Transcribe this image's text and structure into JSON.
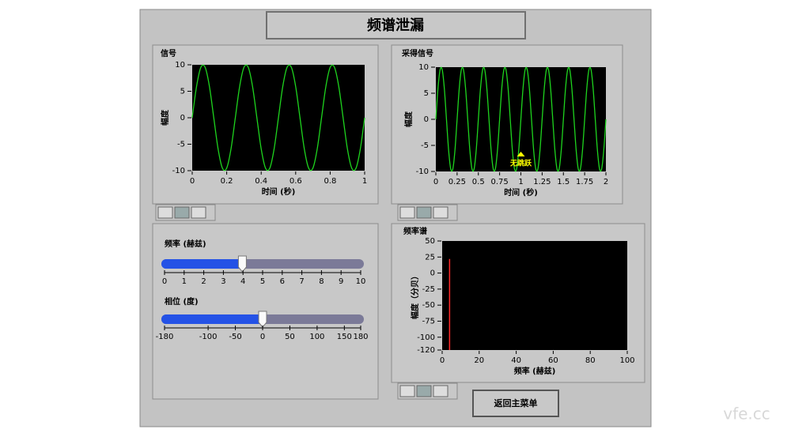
{
  "title": "频谱泄漏",
  "signal_chart": {
    "type": "line",
    "title": "信号",
    "x_label": "时间 (秒)",
    "y_label": "幅度",
    "xlim": [
      0,
      1
    ],
    "xticks": [
      0,
      0.2,
      0.4,
      0.6,
      0.8,
      1
    ],
    "ylim": [
      -10,
      10
    ],
    "yticks": [
      10,
      5,
      0,
      -5,
      -10
    ],
    "series": [
      {
        "color": "#1ed41e",
        "x": [
          0,
          0.025,
          0.05,
          0.075,
          0.1,
          0.125,
          0.15,
          0.175,
          0.2,
          0.225,
          0.25,
          0.275,
          0.3,
          0.325,
          0.35,
          0.375,
          0.4,
          0.425,
          0.45,
          0.475,
          0.5,
          0.525,
          0.55,
          0.575,
          0.6,
          0.625,
          0.65,
          0.675,
          0.7,
          0.725,
          0.75,
          0.775,
          0.8,
          0.825,
          0.85,
          0.875,
          0.9,
          0.925,
          0.95,
          0.975,
          1
        ],
        "values": [
          0,
          5.88,
          9.51,
          9.51,
          5.88,
          0,
          -5.88,
          -9.51,
          -9.51,
          -5.88,
          0,
          5.88,
          9.51,
          9.51,
          5.88,
          0,
          -5.88,
          -9.51,
          -9.51,
          -5.88,
          0,
          5.88,
          9.51,
          9.51,
          5.88,
          0,
          -5.88,
          -9.51,
          -9.51,
          -5.88,
          0,
          5.88,
          9.51,
          9.51,
          5.88,
          0,
          -5.88,
          -9.51,
          -9.51,
          -5.88,
          0
        ]
      }
    ]
  },
  "sampled_chart": {
    "type": "line",
    "title": "采得信号",
    "x_label": "时间 (秒)",
    "y_label": "幅度",
    "annotation": "无跳跃",
    "xlim": [
      0,
      2
    ],
    "xticks": [
      0,
      0.25,
      0.5,
      0.75,
      1,
      1.25,
      1.5,
      1.75,
      2
    ],
    "ylim": [
      -10,
      10
    ],
    "yticks": [
      10,
      5,
      0,
      -5,
      -10
    ],
    "series": [
      {
        "color": "#1ed41e",
        "x": [
          0,
          0.025,
          0.05,
          0.075,
          0.1,
          0.125,
          0.15,
          0.175,
          0.2,
          0.225,
          0.25,
          0.275,
          0.3,
          0.325,
          0.35,
          0.375,
          0.4,
          0.425,
          0.45,
          0.475,
          0.5,
          0.525,
          0.55,
          0.575,
          0.6,
          0.625,
          0.65,
          0.675,
          0.7,
          0.725,
          0.75,
          0.775,
          0.8,
          0.825,
          0.85,
          0.875,
          0.9,
          0.925,
          0.95,
          0.975,
          1,
          1.025,
          1.05,
          1.075,
          1.1,
          1.125,
          1.15,
          1.175,
          1.2,
          1.225,
          1.25,
          1.275,
          1.3,
          1.325,
          1.35,
          1.375,
          1.4,
          1.425,
          1.45,
          1.475,
          1.5,
          1.525,
          1.55,
          1.575,
          1.6,
          1.625,
          1.65,
          1.675,
          1.7,
          1.725,
          1.75,
          1.775,
          1.8,
          1.825,
          1.85,
          1.875,
          1.9,
          1.925,
          1.95,
          1.975,
          2
        ],
        "values": [
          0,
          5.88,
          9.51,
          9.51,
          5.88,
          0,
          -5.88,
          -9.51,
          -9.51,
          -5.88,
          0,
          5.88,
          9.51,
          9.51,
          5.88,
          0,
          -5.88,
          -9.51,
          -9.51,
          -5.88,
          0,
          5.88,
          9.51,
          9.51,
          5.88,
          0,
          -5.88,
          -9.51,
          -9.51,
          -5.88,
          0,
          5.88,
          9.51,
          9.51,
          5.88,
          0,
          -5.88,
          -9.51,
          -9.51,
          -5.88,
          0,
          5.88,
          9.51,
          9.51,
          5.88,
          0,
          -5.88,
          -9.51,
          -9.51,
          -5.88,
          0,
          5.88,
          9.51,
          9.51,
          5.88,
          0,
          -5.88,
          -9.51,
          -9.51,
          -5.88,
          0,
          5.88,
          9.51,
          9.51,
          5.88,
          0,
          -5.88,
          -9.51,
          -9.51,
          -5.88,
          0,
          5.88,
          9.51,
          9.51,
          5.88,
          0,
          -5.88,
          -9.51,
          -9.51,
          -5.88,
          0
        ]
      }
    ]
  },
  "spectrum_chart": {
    "type": "bar",
    "title": "频率谱",
    "x_label": "频率 (赫兹)",
    "y_label": "幅度（分贝）",
    "xlim": [
      0,
      100
    ],
    "xticks": [
      0,
      20,
      40,
      60,
      80,
      100
    ],
    "ylim": [
      -120,
      50
    ],
    "yticks": [
      50,
      25,
      0,
      -25,
      -50,
      -75,
      -100,
      -120
    ],
    "series": [
      {
        "color": "#ff2a2a",
        "x": [
          4
        ],
        "values": [
          22
        ]
      }
    ]
  },
  "frequency_slider": {
    "label": "频率 (赫兹)",
    "value": 4,
    "lim": [
      0,
      10
    ],
    "ticks": [
      0,
      1,
      2,
      3,
      4,
      5,
      6,
      7,
      8,
      9,
      10
    ]
  },
  "phase_slider": {
    "label": "相位 (度)",
    "value": 0,
    "lim": [
      -180,
      180
    ],
    "ticks": [
      -180,
      -100,
      -50,
      0,
      50,
      100,
      150,
      180
    ]
  },
  "button": {
    "label": "返回主菜单"
  },
  "watermark": "vfe.cc"
}
